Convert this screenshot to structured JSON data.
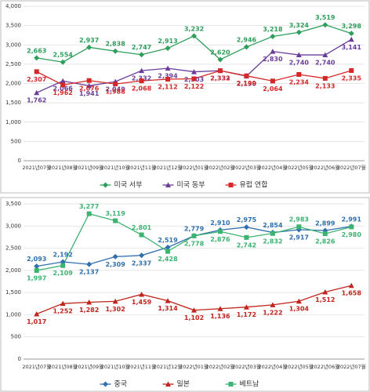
{
  "chart_data": [
    {
      "type": "line",
      "categories": [
        "2021년07월",
        "2021년08월",
        "2021년09월",
        "2021년10월",
        "2021년11월",
        "2021년12월",
        "2022년01월",
        "2022년02월",
        "2022년03월",
        "2022년04월",
        "2022년05월",
        "2022년06월",
        "2022년07월"
      ],
      "ylim": [
        0,
        4000
      ],
      "yticks": [
        0,
        500,
        {
          "value": 1000,
          "label": "1,000"
        },
        {
          "value": 1500,
          "label": "1,500"
        },
        {
          "value": 2000,
          "label": "2,000"
        },
        {
          "value": 2500,
          "label": "2,500"
        },
        {
          "value": 3000,
          "label": "3,000"
        },
        {
          "value": 3500,
          "label": "3,500"
        },
        {
          "value": 4000,
          "label": "4,000"
        }
      ],
      "grid": true,
      "series": [
        {
          "name": "미국 서부",
          "color": "#2e9e5b",
          "values": [
            2663,
            2554,
            2937,
            2838,
            2747,
            2913,
            3232,
            2620,
            2946,
            3218,
            3324,
            3519,
            3298
          ],
          "value_labels": [
            "2,663",
            "2,554",
            "2,937",
            "2,838",
            "2,747",
            "2,913",
            "3,232",
            "2,620",
            "2,946",
            "3,218",
            "3,324",
            "3,519",
            "3,298"
          ]
        },
        {
          "name": "미국 동부",
          "color": "#6a3d9a",
          "values": [
            1762,
            2066,
            1941,
            2049,
            2332,
            2394,
            2303,
            2333,
            2190,
            2830,
            2740,
            2740,
            3141
          ],
          "value_labels": [
            "1,762",
            "2,066",
            "1,941",
            "2,049",
            "2,332",
            "2,394",
            "2,303",
            "2,333",
            "2,190",
            "2,830",
            "2,740",
            "2,740",
            "3,141"
          ]
        },
        {
          "name": "유럽 연합",
          "color": "#d62728",
          "values": [
            2307,
            1962,
            2076,
            1988,
            2068,
            2112,
            2122,
            2332,
            2199,
            2064,
            2234,
            2133,
            2335
          ],
          "value_labels": [
            "2,307",
            "1,962",
            "2,076",
            "1,988",
            "2,068",
            "2,112",
            "2,122",
            "2,332",
            "2,199",
            "2,064",
            "2,234",
            "2,133",
            "2,335"
          ]
        }
      ]
    },
    {
      "type": "line",
      "categories": [
        "2021년07월",
        "2021년08월",
        "2021년09월",
        "2021년10월",
        "2021년11월",
        "2021년12월",
        "2022년01월",
        "2022년02월",
        "2022년03월",
        "2022년04월",
        "2022년05월",
        "2022년06월",
        "2022년07월"
      ],
      "ylim": [
        0,
        3500
      ],
      "yticks": [
        0,
        500,
        {
          "value": 1000,
          "label": "1,000"
        },
        {
          "value": 1500,
          "label": "1,500"
        },
        {
          "value": 2000,
          "label": "2,000"
        },
        {
          "value": 2500,
          "label": "2,500"
        },
        {
          "value": 3000,
          "label": "3,000"
        },
        {
          "value": 3500,
          "label": "3,500"
        }
      ],
      "grid": true,
      "series": [
        {
          "name": "중국",
          "color": "#2f6fae",
          "values": [
            2093,
            2192,
            2137,
            2309,
            2337,
            2519,
            2779,
            2910,
            2975,
            2854,
            2917,
            2899,
            2991
          ],
          "value_labels": [
            "2,093",
            "2,192",
            "2,137",
            "2,309",
            "2,337",
            "2,519",
            "2,779",
            "2,910",
            "2,975",
            "2,854",
            "2,917",
            "2,899",
            "2,991"
          ]
        },
        {
          "name": "일본",
          "color": "#c0241c",
          "values": [
            1017,
            1252,
            1282,
            1302,
            1459,
            1314,
            1102,
            1136,
            1172,
            1222,
            1304,
            1512,
            1658
          ],
          "value_labels": [
            "1,017",
            "1,252",
            "1,282",
            "1,302",
            "1,459",
            "1,314",
            "1,102",
            "1,136",
            "1,172",
            "1,222",
            "1,304",
            "1,512",
            "1,658"
          ]
        },
        {
          "name": "베트남",
          "color": "#3cb371",
          "values": [
            1997,
            2109,
            3277,
            3119,
            2801,
            2428,
            2778,
            2876,
            2742,
            2832,
            2983,
            2826,
            2980
          ],
          "value_labels": [
            "1,997",
            "2,109",
            "3,277",
            "3,119",
            "2,801",
            "2,428",
            "2,778",
            "2,876",
            "2,742",
            "2,832",
            "2,983",
            "2,826",
            "2,980"
          ]
        }
      ]
    }
  ]
}
